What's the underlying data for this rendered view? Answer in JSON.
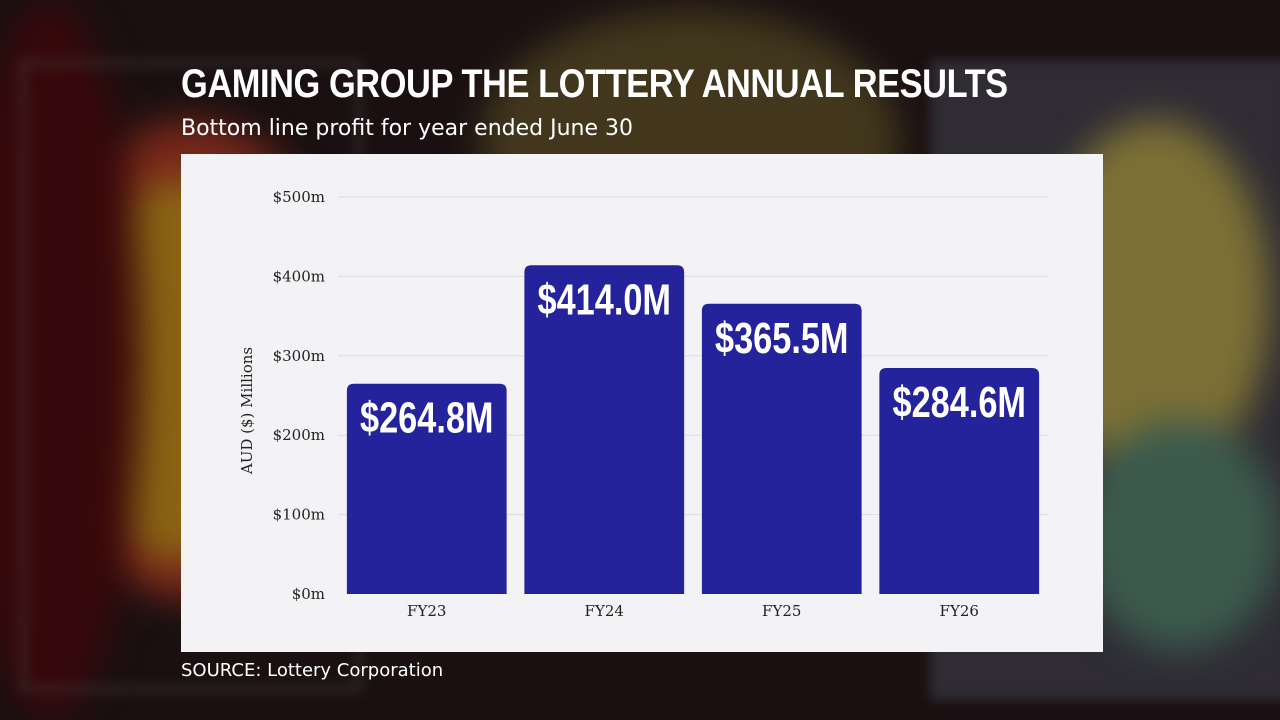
{
  "header": {
    "title": "GAMING GROUP THE LOTTERY ANNUAL RESULTS",
    "subtitle": "Bottom line profit for year ended June 30"
  },
  "footer": {
    "source": "SOURCE: Lottery Corporation"
  },
  "colors": {
    "bar": "#25239b",
    "card": "#f3f3f6",
    "grid": "#dcdce2",
    "text": "#222222"
  },
  "chart_data": {
    "type": "bar",
    "categories": [
      "FY23",
      "FY24",
      "FY25",
      "FY26"
    ],
    "values": [
      264.8,
      414.0,
      365.5,
      284.6
    ],
    "data_labels": [
      "$264.8M",
      "$414.0M",
      "$365.5M",
      "$284.6M"
    ],
    "ylabel": "AUD ($) Millions",
    "xlabel": "",
    "ylim": [
      0,
      500
    ],
    "yticks": [
      0,
      100,
      200,
      300,
      400,
      500
    ],
    "ytick_labels": [
      "$0m",
      "$100m",
      "$200m",
      "$300m",
      "$400m",
      "$500m"
    ],
    "grid": true,
    "legend": "none"
  }
}
